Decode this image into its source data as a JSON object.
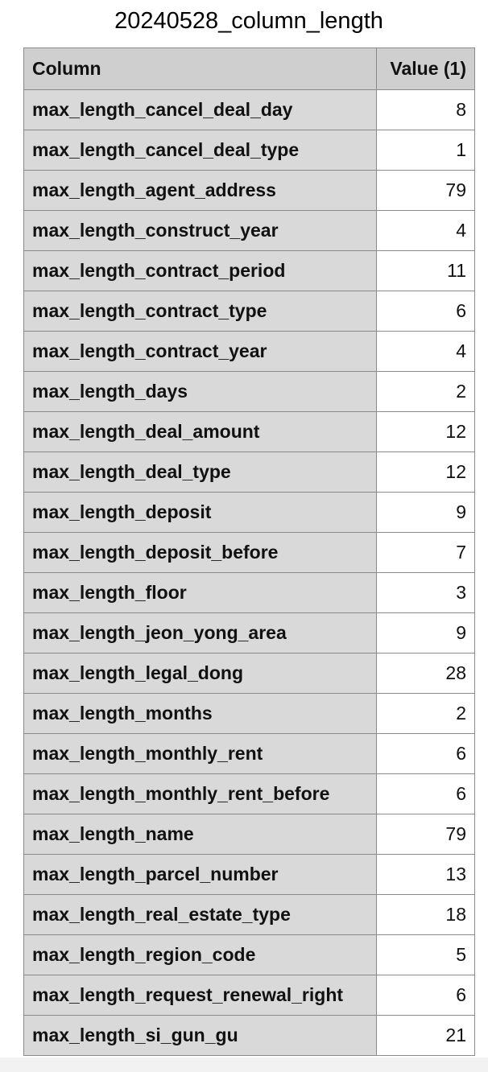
{
  "title": "20240528_column_length",
  "table": {
    "headers": [
      "Column",
      "Value (1)"
    ],
    "rows": [
      {
        "column": "max_length_cancel_deal_day",
        "value": "8"
      },
      {
        "column": "max_length_cancel_deal_type",
        "value": "1"
      },
      {
        "column": "max_length_agent_address",
        "value": "79"
      },
      {
        "column": "max_length_construct_year",
        "value": "4"
      },
      {
        "column": "max_length_contract_period",
        "value": "11"
      },
      {
        "column": "max_length_contract_type",
        "value": "6"
      },
      {
        "column": "max_length_contract_year",
        "value": "4"
      },
      {
        "column": "max_length_days",
        "value": "2"
      },
      {
        "column": "max_length_deal_amount",
        "value": "12"
      },
      {
        "column": "max_length_deal_type",
        "value": "12"
      },
      {
        "column": "max_length_deposit",
        "value": "9"
      },
      {
        "column": "max_length_deposit_before",
        "value": "7"
      },
      {
        "column": "max_length_floor",
        "value": "3"
      },
      {
        "column": "max_length_jeon_yong_area",
        "value": "9"
      },
      {
        "column": "max_length_legal_dong",
        "value": "28"
      },
      {
        "column": "max_length_months",
        "value": "2"
      },
      {
        "column": "max_length_monthly_rent",
        "value": "6"
      },
      {
        "column": "max_length_monthly_rent_before",
        "value": "6"
      },
      {
        "column": "max_length_name",
        "value": "79"
      },
      {
        "column": "max_length_parcel_number",
        "value": "13"
      },
      {
        "column": "max_length_real_estate_type",
        "value": "18"
      },
      {
        "column": "max_length_region_code",
        "value": "5"
      },
      {
        "column": "max_length_request_renewal_right",
        "value": "6"
      },
      {
        "column": "max_length_si_gun_gu",
        "value": "21"
      }
    ]
  }
}
